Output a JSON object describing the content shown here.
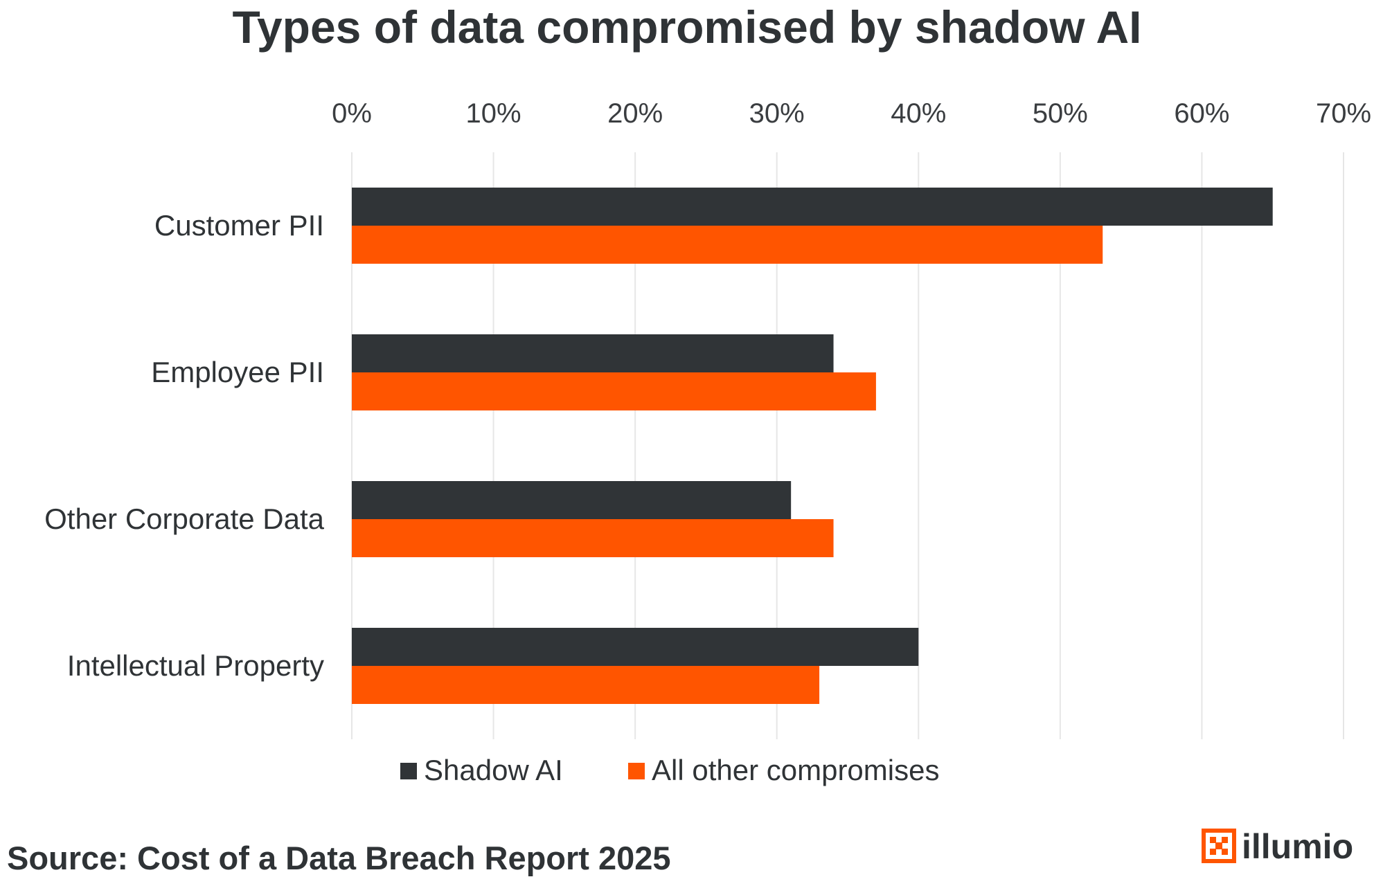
{
  "chart_data": {
    "type": "bar",
    "orientation": "horizontal",
    "title": "Types of data compromised by shadow AI",
    "categories": [
      "Customer PII",
      "Employee PII",
      "Other Corporate Data",
      "Intellectual Property"
    ],
    "series": [
      {
        "name": "Shadow AI",
        "color": "#303437",
        "values": [
          65,
          34,
          31,
          40
        ]
      },
      {
        "name": "All other compromises",
        "color": "#ff5500",
        "values": [
          53,
          37,
          34,
          33
        ]
      }
    ],
    "xlim": [
      0,
      70
    ],
    "x_ticks": [
      0,
      10,
      20,
      30,
      40,
      50,
      60,
      70
    ],
    "x_tick_labels": [
      "0%",
      "10%",
      "20%",
      "30%",
      "40%",
      "50%",
      "60%",
      "70%"
    ],
    "x_axis_position": "top",
    "grid": true,
    "legend_position": "bottom"
  },
  "source": "Source: Cost of a Data Breach Report 2025",
  "brand": {
    "name": "illumio",
    "logo_icon": "illumio-logo-icon",
    "color": "#ff5500"
  }
}
